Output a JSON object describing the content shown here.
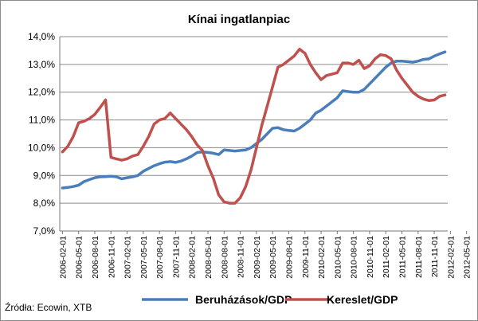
{
  "chart_data": {
    "type": "line",
    "title": "Kínai ingatlanpiac",
    "xlabel": "",
    "ylabel": "",
    "ylim": [
      7.0,
      14.0
    ],
    "y_ticks": [
      "7,0%",
      "8,0%",
      "9,0%",
      "10,0%",
      "11,0%",
      "12,0%",
      "13,0%",
      "14,0%"
    ],
    "y_tick_values": [
      7,
      8,
      9,
      10,
      11,
      12,
      13,
      14
    ],
    "x_ticks": [
      "2006-02-01",
      "2006-05-01",
      "2006-08-01",
      "2006-11-01",
      "2007-02-01",
      "2007-05-01",
      "2007-08-01",
      "2007-11-01",
      "2008-02-01",
      "2008-05-01",
      "2008-08-01",
      "2008-11-01",
      "2009-02-01",
      "2009-05-01",
      "2009-08-01",
      "2009-11-01",
      "2010-02-01",
      "2010-05-01",
      "2010-08-01",
      "2010-11-01",
      "2011-02-01",
      "2011-05-01",
      "2011-08-01",
      "2011-11-01",
      "2012-02-01",
      "2012-05-01"
    ],
    "grid": "horizontal",
    "legend_position": "bottom",
    "series": [
      {
        "name": "Beruházások/GDP",
        "color": "#4a7ebb",
        "points": [
          [
            0,
            8.55
          ],
          [
            1,
            8.57
          ],
          [
            2,
            8.6
          ],
          [
            3,
            8.65
          ],
          [
            4,
            8.78
          ],
          [
            5,
            8.85
          ],
          [
            6,
            8.92
          ],
          [
            7,
            8.95
          ],
          [
            8,
            8.96
          ],
          [
            9,
            8.97
          ],
          [
            10,
            8.95
          ],
          [
            11,
            8.88
          ],
          [
            12,
            8.92
          ],
          [
            13,
            8.95
          ],
          [
            14,
            9.0
          ],
          [
            15,
            9.15
          ],
          [
            16,
            9.25
          ],
          [
            17,
            9.35
          ],
          [
            18,
            9.42
          ],
          [
            19,
            9.48
          ],
          [
            20,
            9.5
          ],
          [
            21,
            9.47
          ],
          [
            22,
            9.52
          ],
          [
            23,
            9.6
          ],
          [
            24,
            9.7
          ],
          [
            25,
            9.83
          ],
          [
            26,
            9.85
          ],
          [
            27,
            9.83
          ],
          [
            28,
            9.8
          ],
          [
            29,
            9.75
          ],
          [
            30,
            9.92
          ],
          [
            31,
            9.9
          ],
          [
            32,
            9.88
          ],
          [
            33,
            9.9
          ],
          [
            34,
            9.92
          ],
          [
            35,
            10.0
          ],
          [
            36,
            10.15
          ],
          [
            37,
            10.3
          ],
          [
            38,
            10.5
          ],
          [
            39,
            10.7
          ],
          [
            40,
            10.72
          ],
          [
            41,
            10.65
          ],
          [
            42,
            10.62
          ],
          [
            43,
            10.6
          ],
          [
            44,
            10.7
          ],
          [
            45,
            10.85
          ],
          [
            46,
            11.0
          ],
          [
            47,
            11.25
          ],
          [
            48,
            11.35
          ],
          [
            49,
            11.5
          ],
          [
            50,
            11.65
          ],
          [
            51,
            11.8
          ],
          [
            52,
            12.05
          ],
          [
            53,
            12.02
          ],
          [
            54,
            12.0
          ],
          [
            55,
            12.0
          ],
          [
            56,
            12.1
          ],
          [
            57,
            12.3
          ],
          [
            58,
            12.5
          ],
          [
            59,
            12.7
          ],
          [
            60,
            12.9
          ],
          [
            61,
            13.05
          ],
          [
            62,
            13.12
          ],
          [
            63,
            13.12
          ],
          [
            64,
            13.1
          ],
          [
            65,
            13.08
          ],
          [
            66,
            13.12
          ],
          [
            67,
            13.18
          ],
          [
            68,
            13.2
          ],
          [
            69,
            13.3
          ],
          [
            70,
            13.38
          ],
          [
            71,
            13.45
          ]
        ]
      },
      {
        "name": "Kereslet/GDP",
        "color": "#c0504d",
        "points": [
          [
            0,
            9.85
          ],
          [
            1,
            10.05
          ],
          [
            2,
            10.4
          ],
          [
            3,
            10.9
          ],
          [
            4,
            10.95
          ],
          [
            5,
            11.05
          ],
          [
            6,
            11.2
          ],
          [
            7,
            11.45
          ],
          [
            8,
            11.72
          ],
          [
            9,
            9.65
          ],
          [
            10,
            9.6
          ],
          [
            11,
            9.55
          ],
          [
            12,
            9.6
          ],
          [
            13,
            9.7
          ],
          [
            14,
            9.75
          ],
          [
            15,
            10.05
          ],
          [
            16,
            10.4
          ],
          [
            17,
            10.85
          ],
          [
            18,
            11.0
          ],
          [
            19,
            11.05
          ],
          [
            20,
            11.25
          ],
          [
            21,
            11.05
          ],
          [
            22,
            10.85
          ],
          [
            23,
            10.65
          ],
          [
            24,
            10.4
          ],
          [
            25,
            10.1
          ],
          [
            26,
            9.9
          ],
          [
            27,
            9.35
          ],
          [
            28,
            8.9
          ],
          [
            29,
            8.3
          ],
          [
            30,
            8.05
          ],
          [
            31,
            8.0
          ],
          [
            32,
            8.0
          ],
          [
            33,
            8.2
          ],
          [
            34,
            8.6
          ],
          [
            35,
            9.2
          ],
          [
            36,
            10.0
          ],
          [
            37,
            10.8
          ],
          [
            38,
            11.5
          ],
          [
            39,
            12.2
          ],
          [
            40,
            12.9
          ],
          [
            41,
            13.0
          ],
          [
            42,
            13.15
          ],
          [
            43,
            13.3
          ],
          [
            44,
            13.55
          ],
          [
            45,
            13.4
          ],
          [
            46,
            13.0
          ],
          [
            47,
            12.7
          ],
          [
            48,
            12.45
          ],
          [
            49,
            12.6
          ],
          [
            50,
            12.65
          ],
          [
            51,
            12.7
          ],
          [
            52,
            13.05
          ],
          [
            53,
            13.05
          ],
          [
            54,
            13.0
          ],
          [
            55,
            13.15
          ],
          [
            56,
            12.85
          ],
          [
            57,
            12.95
          ],
          [
            58,
            13.2
          ],
          [
            59,
            13.35
          ],
          [
            60,
            13.32
          ],
          [
            61,
            13.2
          ],
          [
            62,
            12.8
          ],
          [
            63,
            12.5
          ],
          [
            64,
            12.25
          ],
          [
            65,
            12.0
          ],
          [
            66,
            11.85
          ],
          [
            67,
            11.75
          ],
          [
            68,
            11.7
          ],
          [
            69,
            11.72
          ],
          [
            70,
            11.85
          ],
          [
            71,
            11.9
          ]
        ]
      }
    ]
  },
  "source": "Źródła: Ecowin, XTB"
}
